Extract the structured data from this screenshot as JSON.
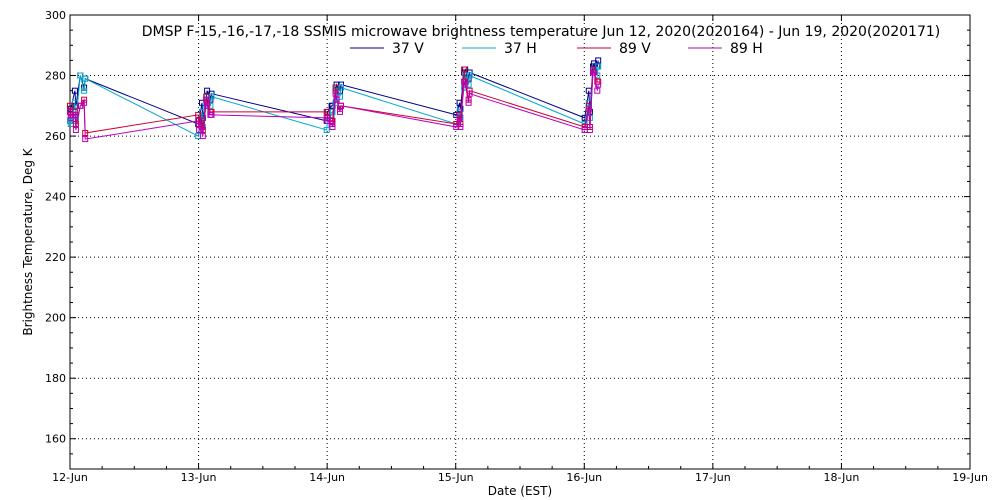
{
  "chart_data": {
    "type": "line",
    "title": "DMSP F-15,-16,-17,-18 SSMIS microwave brightness temperature Jun 12, 2020(2020164) - Jun 19, 2020(2020171)",
    "xlabel": "Date (EST)",
    "ylabel": "Brightness Temperature, Deg K",
    "xlim": [
      "2020-06-12",
      "2020-06-19"
    ],
    "ylim": [
      150,
      300
    ],
    "x_ticks": [
      "12-Jun",
      "13-Jun",
      "14-Jun",
      "15-Jun",
      "16-Jun",
      "17-Jun",
      "18-Jun",
      "19-Jun"
    ],
    "y_ticks": [
      160,
      180,
      200,
      220,
      240,
      260,
      280,
      300
    ],
    "grid": true,
    "legend_position": "top-center",
    "marker": "square",
    "series": [
      {
        "name": "37 V",
        "color": "#00008b",
        "points": [
          [
            "2020-06-12T00:00",
            265
          ],
          [
            "2020-06-12T00:09",
            269
          ],
          [
            "2020-06-12T00:55",
            275
          ],
          [
            "2020-06-12T01:06",
            270
          ],
          [
            "2020-06-12T01:55",
            280
          ],
          [
            "2020-06-12T02:38",
            276
          ],
          [
            "2020-06-12T02:50",
            279
          ],
          [
            "2020-06-12T23:56",
            264
          ],
          [
            "2020-06-13T00:06",
            265
          ],
          [
            "2020-06-13T00:38",
            271
          ],
          [
            "2020-06-13T00:47",
            266
          ],
          [
            "2020-06-13T01:26",
            272
          ],
          [
            "2020-06-13T01:36",
            275
          ],
          [
            "2020-06-13T02:13",
            272
          ],
          [
            "2020-06-13T02:25",
            274
          ],
          [
            "2020-06-13T23:55",
            265
          ],
          [
            "2020-06-14T00:06",
            268
          ],
          [
            "2020-06-14T00:50",
            270
          ],
          [
            "2020-06-14T01:00",
            270
          ],
          [
            "2020-06-14T01:35",
            275
          ],
          [
            "2020-06-14T01:46",
            277
          ],
          [
            "2020-06-14T02:24",
            275
          ],
          [
            "2020-06-14T02:35",
            277
          ],
          [
            "2020-06-15T00:07",
            267
          ],
          [
            "2020-06-15T00:43",
            271
          ],
          [
            "2020-06-15T00:53",
            269
          ],
          [
            "2020-06-15T01:34",
            281
          ],
          [
            "2020-06-15T01:46",
            282
          ],
          [
            "2020-06-15T02:24",
            279
          ],
          [
            "2020-06-15T02:36",
            281
          ],
          [
            "2020-06-16T00:05",
            266
          ],
          [
            "2020-06-16T00:50",
            275
          ],
          [
            "2020-06-16T01:03",
            268
          ],
          [
            "2020-06-16T01:38",
            283
          ],
          [
            "2020-06-16T01:50",
            284
          ],
          [
            "2020-06-16T02:26",
            283
          ],
          [
            "2020-06-16T02:36",
            285
          ]
        ]
      },
      {
        "name": "37 H",
        "color": "#00aacc",
        "points": [
          [
            "2020-06-12T00:00",
            265
          ],
          [
            "2020-06-12T00:09",
            264
          ],
          [
            "2020-06-12T00:55",
            271
          ],
          [
            "2020-06-12T01:06",
            265
          ],
          [
            "2020-06-12T01:55",
            280
          ],
          [
            "2020-06-12T02:38",
            275
          ],
          [
            "2020-06-12T02:50",
            279
          ],
          [
            "2020-06-12T23:56",
            260
          ],
          [
            "2020-06-13T00:06",
            262
          ],
          [
            "2020-06-13T00:38",
            268
          ],
          [
            "2020-06-13T00:47",
            263
          ],
          [
            "2020-06-13T01:26",
            270
          ],
          [
            "2020-06-13T01:36",
            273
          ],
          [
            "2020-06-13T02:13",
            270
          ],
          [
            "2020-06-13T02:25",
            273
          ],
          [
            "2020-06-13T23:55",
            262
          ],
          [
            "2020-06-14T00:06",
            266
          ],
          [
            "2020-06-14T00:50",
            267
          ],
          [
            "2020-06-14T01:00",
            268
          ],
          [
            "2020-06-14T01:35",
            271
          ],
          [
            "2020-06-14T01:46",
            276
          ],
          [
            "2020-06-14T02:24",
            273
          ],
          [
            "2020-06-14T02:35",
            276
          ],
          [
            "2020-06-15T00:07",
            264
          ],
          [
            "2020-06-15T00:43",
            268
          ],
          [
            "2020-06-15T00:53",
            266
          ],
          [
            "2020-06-15T01:34",
            276
          ],
          [
            "2020-06-15T01:46",
            280
          ],
          [
            "2020-06-15T02:24",
            277
          ],
          [
            "2020-06-15T02:36",
            280
          ],
          [
            "2020-06-16T00:05",
            264
          ],
          [
            "2020-06-16T00:50",
            271
          ],
          [
            "2020-06-16T01:03",
            266
          ],
          [
            "2020-06-16T01:38",
            281
          ],
          [
            "2020-06-16T01:50",
            282
          ],
          [
            "2020-06-16T02:26",
            280
          ],
          [
            "2020-06-16T02:36",
            283
          ]
        ]
      },
      {
        "name": "89 V",
        "color": "#cc0033",
        "points": [
          [
            "2020-06-12T00:00",
            270
          ],
          [
            "2020-06-12T00:09",
            267
          ],
          [
            "2020-06-12T00:55",
            268
          ],
          [
            "2020-06-12T01:06",
            264
          ],
          [
            "2020-06-12T01:55",
            270
          ],
          [
            "2020-06-12T02:38",
            272
          ],
          [
            "2020-06-12T02:50",
            261
          ],
          [
            "2020-06-12T23:56",
            267
          ],
          [
            "2020-06-13T00:06",
            264
          ],
          [
            "2020-06-13T00:38",
            265
          ],
          [
            "2020-06-13T00:47",
            262
          ],
          [
            "2020-06-13T01:26",
            273
          ],
          [
            "2020-06-13T01:36",
            271
          ],
          [
            "2020-06-13T02:13",
            268
          ],
          [
            "2020-06-13T02:25",
            268
          ],
          [
            "2020-06-13T23:55",
            268
          ],
          [
            "2020-06-14T00:06",
            266
          ],
          [
            "2020-06-14T00:50",
            265
          ],
          [
            "2020-06-14T01:00",
            265
          ],
          [
            "2020-06-14T01:35",
            276
          ],
          [
            "2020-06-14T01:46",
            272
          ],
          [
            "2020-06-14T02:24",
            269
          ],
          [
            "2020-06-14T02:35",
            270
          ],
          [
            "2020-06-15T00:07",
            264
          ],
          [
            "2020-06-15T00:43",
            267
          ],
          [
            "2020-06-15T00:53",
            264
          ],
          [
            "2020-06-15T01:34",
            282
          ],
          [
            "2020-06-15T01:46",
            278
          ],
          [
            "2020-06-15T02:24",
            272
          ],
          [
            "2020-06-15T02:36",
            275
          ],
          [
            "2020-06-16T00:05",
            263
          ],
          [
            "2020-06-16T00:50",
            270
          ],
          [
            "2020-06-16T01:03",
            263
          ],
          [
            "2020-06-16T01:38",
            282
          ],
          [
            "2020-06-16T01:50",
            281
          ],
          [
            "2020-06-16T02:26",
            278
          ],
          [
            "2020-06-16T02:36",
            278
          ]
        ]
      },
      {
        "name": "89 H",
        "color": "#bb00bb",
        "points": [
          [
            "2020-06-12T00:00",
            268
          ],
          [
            "2020-06-12T00:09",
            266
          ],
          [
            "2020-06-12T00:55",
            267
          ],
          [
            "2020-06-12T01:06",
            262
          ],
          [
            "2020-06-12T01:55",
            270
          ],
          [
            "2020-06-12T02:38",
            271
          ],
          [
            "2020-06-12T02:50",
            259
          ],
          [
            "2020-06-12T23:56",
            265
          ],
          [
            "2020-06-13T00:06",
            262
          ],
          [
            "2020-06-13T00:38",
            263
          ],
          [
            "2020-06-13T00:47",
            260
          ],
          [
            "2020-06-13T01:26",
            272
          ],
          [
            "2020-06-13T01:36",
            270
          ],
          [
            "2020-06-13T02:13",
            267
          ],
          [
            "2020-06-13T02:25",
            267
          ],
          [
            "2020-06-13T23:55",
            266
          ],
          [
            "2020-06-14T00:06",
            265
          ],
          [
            "2020-06-14T00:50",
            264
          ],
          [
            "2020-06-14T01:00",
            263
          ],
          [
            "2020-06-14T01:35",
            274
          ],
          [
            "2020-06-14T01:46",
            272
          ],
          [
            "2020-06-14T02:24",
            268
          ],
          [
            "2020-06-14T02:35",
            270
          ],
          [
            "2020-06-15T00:07",
            263
          ],
          [
            "2020-06-15T00:43",
            266
          ],
          [
            "2020-06-15T00:53",
            263
          ],
          [
            "2020-06-15T01:34",
            278
          ],
          [
            "2020-06-15T01:46",
            277
          ],
          [
            "2020-06-15T02:24",
            271
          ],
          [
            "2020-06-15T02:36",
            274
          ],
          [
            "2020-06-16T00:05",
            262
          ],
          [
            "2020-06-16T00:50",
            269
          ],
          [
            "2020-06-16T01:03",
            262
          ],
          [
            "2020-06-16T01:38",
            281
          ],
          [
            "2020-06-16T01:50",
            281
          ],
          [
            "2020-06-16T02:26",
            275
          ],
          [
            "2020-06-16T02:36",
            277
          ]
        ]
      }
    ]
  }
}
